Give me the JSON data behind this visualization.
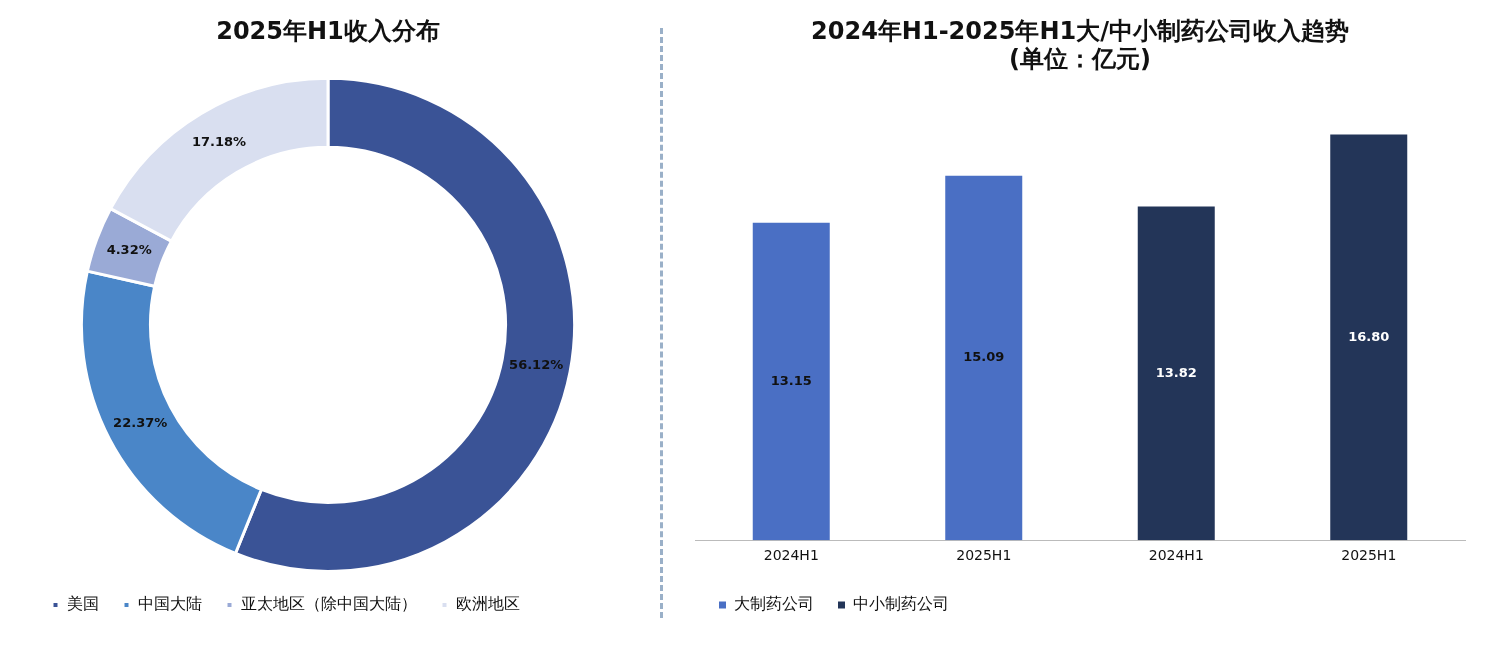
{
  "chart_data": [
    {
      "type": "donut",
      "title": "2025年H1收入分布",
      "categories": [
        "美国",
        "中国大陆",
        "亚太地区（除中国大陆）",
        "欧洲地区"
      ],
      "values": [
        56.12,
        22.37,
        4.32,
        17.18
      ],
      "value_labels": [
        "56.12%",
        "22.37%",
        "4.32%",
        "17.18%"
      ],
      "colors": [
        "#3a5396",
        "#4a86c8",
        "#9aaad6",
        "#d9dff0"
      ],
      "legend": "bottom"
    },
    {
      "type": "bar",
      "title": "2024年H1-2025年H1大/中小制药公司收入趋势",
      "subtitle": "(单位：亿元)",
      "categories": [
        "2024H1",
        "2025H1",
        "2024H1",
        "2025H1"
      ],
      "legend": "bottom",
      "grid": false,
      "series": [
        {
          "name": "大制药公司",
          "color": "#4a6fc4",
          "values": [
            13.15,
            15.09,
            null,
            null
          ],
          "value_labels": [
            "13.15",
            "15.09",
            null,
            null
          ]
        },
        {
          "name": "中小制药公司",
          "color": "#233558",
          "values": [
            null,
            null,
            13.82,
            16.8
          ],
          "value_labels": [
            null,
            null,
            "13.82",
            "16.80"
          ]
        }
      ]
    }
  ]
}
